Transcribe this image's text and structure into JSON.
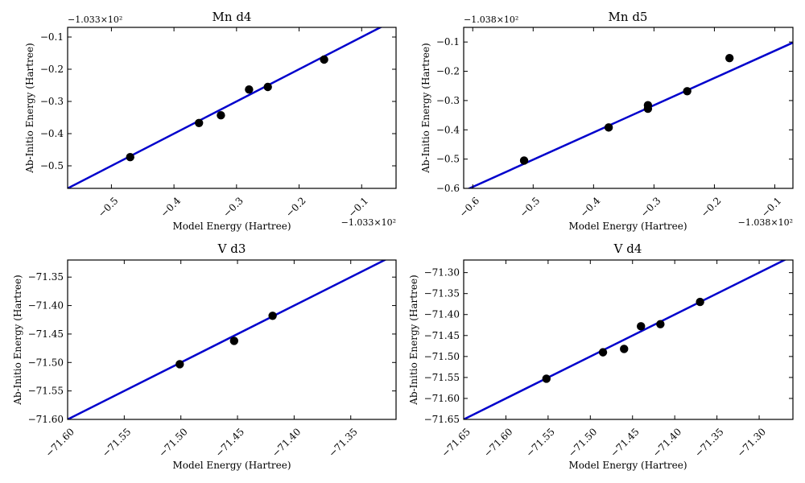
{
  "figure": {
    "point_color": "#000000",
    "line_color": "#0000cc",
    "frame_color": "#000000"
  },
  "chart_data": [
    {
      "type": "scatter",
      "title": "Mn d4",
      "xlabel": "Model Energy (Hartree)",
      "ylabel": "Ab-Initio Energy (Hartree)",
      "xlim": [
        -0.57,
        -0.045
      ],
      "ylim": [
        -0.57,
        -0.07
      ],
      "x_offset_label": "−1.033×10²",
      "y_offset_label": "−1.033×10²",
      "xticks": [
        -0.5,
        -0.4,
        -0.3,
        -0.2,
        -0.1
      ],
      "xtick_labels": [
        "−0.5",
        "−0.4",
        "−0.3",
        "−0.2",
        "−0.1"
      ],
      "yticks": [
        -0.5,
        -0.4,
        -0.3,
        -0.2,
        -0.1
      ],
      "ytick_labels": [
        "−0.5",
        "−0.4",
        "−0.3",
        "−0.2",
        "−0.1"
      ],
      "points": [
        {
          "x": -0.47,
          "y": -0.473
        },
        {
          "x": -0.36,
          "y": -0.367
        },
        {
          "x": -0.325,
          "y": -0.343
        },
        {
          "x": -0.28,
          "y": -0.263
        },
        {
          "x": -0.25,
          "y": -0.255
        },
        {
          "x": -0.16,
          "y": -0.17
        }
      ],
      "fit_line": {
        "slope": 1.0,
        "intercept": 0.0
      },
      "tick_rotation_x": true,
      "grid": false
    },
    {
      "type": "scatter",
      "title": "Mn d5",
      "xlabel": "Model Energy (Hartree)",
      "ylabel": "Ab-Initio Energy (Hartree)",
      "xlim": [
        -0.615,
        -0.07
      ],
      "ylim": [
        -0.6,
        -0.05
      ],
      "x_offset_label": "−1.038×10²",
      "y_offset_label": "−1.038×10²",
      "xticks": [
        -0.6,
        -0.5,
        -0.4,
        -0.3,
        -0.2,
        -0.1
      ],
      "xtick_labels": [
        "−0.6",
        "−0.5",
        "−0.4",
        "−0.3",
        "−0.2",
        "−0.1"
      ],
      "yticks": [
        -0.6,
        -0.5,
        -0.4,
        -0.3,
        -0.2,
        -0.1
      ],
      "ytick_labels": [
        "−0.6",
        "−0.5",
        "−0.4",
        "−0.3",
        "−0.2",
        "−0.1"
      ],
      "points": [
        {
          "x": -0.515,
          "y": -0.505
        },
        {
          "x": -0.375,
          "y": -0.392
        },
        {
          "x": -0.31,
          "y": -0.316
        },
        {
          "x": -0.31,
          "y": -0.328
        },
        {
          "x": -0.245,
          "y": -0.268
        },
        {
          "x": -0.175,
          "y": -0.155
        }
      ],
      "fit_line": {
        "slope": 0.93,
        "intercept": -0.037
      },
      "tick_rotation_x": true,
      "grid": false
    },
    {
      "type": "scatter",
      "title": "V d3",
      "xlabel": "Model Energy (Hartree)",
      "ylabel": "Ab-Initio Energy (Hartree)",
      "xlim": [
        -71.6,
        -71.31
      ],
      "ylim": [
        -71.6,
        -71.32
      ],
      "x_offset_label": "",
      "y_offset_label": "",
      "xticks": [
        -71.6,
        -71.55,
        -71.5,
        -71.45,
        -71.4,
        -71.35
      ],
      "xtick_labels": [
        "−71.60",
        "−71.55",
        "−71.50",
        "−71.45",
        "−71.40",
        "−71.35"
      ],
      "yticks": [
        -71.6,
        -71.55,
        -71.5,
        -71.45,
        -71.4,
        -71.35
      ],
      "ytick_labels": [
        "−71.60",
        "−71.55",
        "−71.50",
        "−71.45",
        "−71.40",
        "−71.35"
      ],
      "points": [
        {
          "x": -71.501,
          "y": -71.503
        },
        {
          "x": -71.453,
          "y": -71.462
        },
        {
          "x": -71.419,
          "y": -71.418
        }
      ],
      "fit_line": {
        "slope": 1.0,
        "intercept": 0.0
      },
      "tick_rotation_x": true,
      "grid": false
    },
    {
      "type": "scatter",
      "title": "V d4",
      "xlabel": "Model Energy (Hartree)",
      "ylabel": "Ab-Initio Energy (Hartree)",
      "xlim": [
        -71.65,
        -71.26
      ],
      "ylim": [
        -71.65,
        -71.27
      ],
      "x_offset_label": "",
      "y_offset_label": "",
      "xticks": [
        -71.65,
        -71.6,
        -71.55,
        -71.5,
        -71.45,
        -71.4,
        -71.35,
        -71.3
      ],
      "xtick_labels": [
        "−71.65",
        "−71.60",
        "−71.55",
        "−71.50",
        "−71.45",
        "−71.40",
        "−71.35",
        "−71.30"
      ],
      "yticks": [
        -71.65,
        -71.6,
        -71.55,
        -71.5,
        -71.45,
        -71.4,
        -71.35,
        -71.3
      ],
      "ytick_labels": [
        "−71.65",
        "−71.60",
        "−71.55",
        "−71.50",
        "−71.45",
        "−71.40",
        "−71.35",
        "−71.30"
      ],
      "points": [
        {
          "x": -71.552,
          "y": -71.553
        },
        {
          "x": -71.485,
          "y": -71.49
        },
        {
          "x": -71.46,
          "y": -71.482
        },
        {
          "x": -71.44,
          "y": -71.428
        },
        {
          "x": -71.417,
          "y": -71.423
        },
        {
          "x": -71.37,
          "y": -71.37
        }
      ],
      "fit_line": {
        "slope": 1.0,
        "intercept": 0.0
      },
      "tick_rotation_x": true,
      "grid": false
    }
  ]
}
